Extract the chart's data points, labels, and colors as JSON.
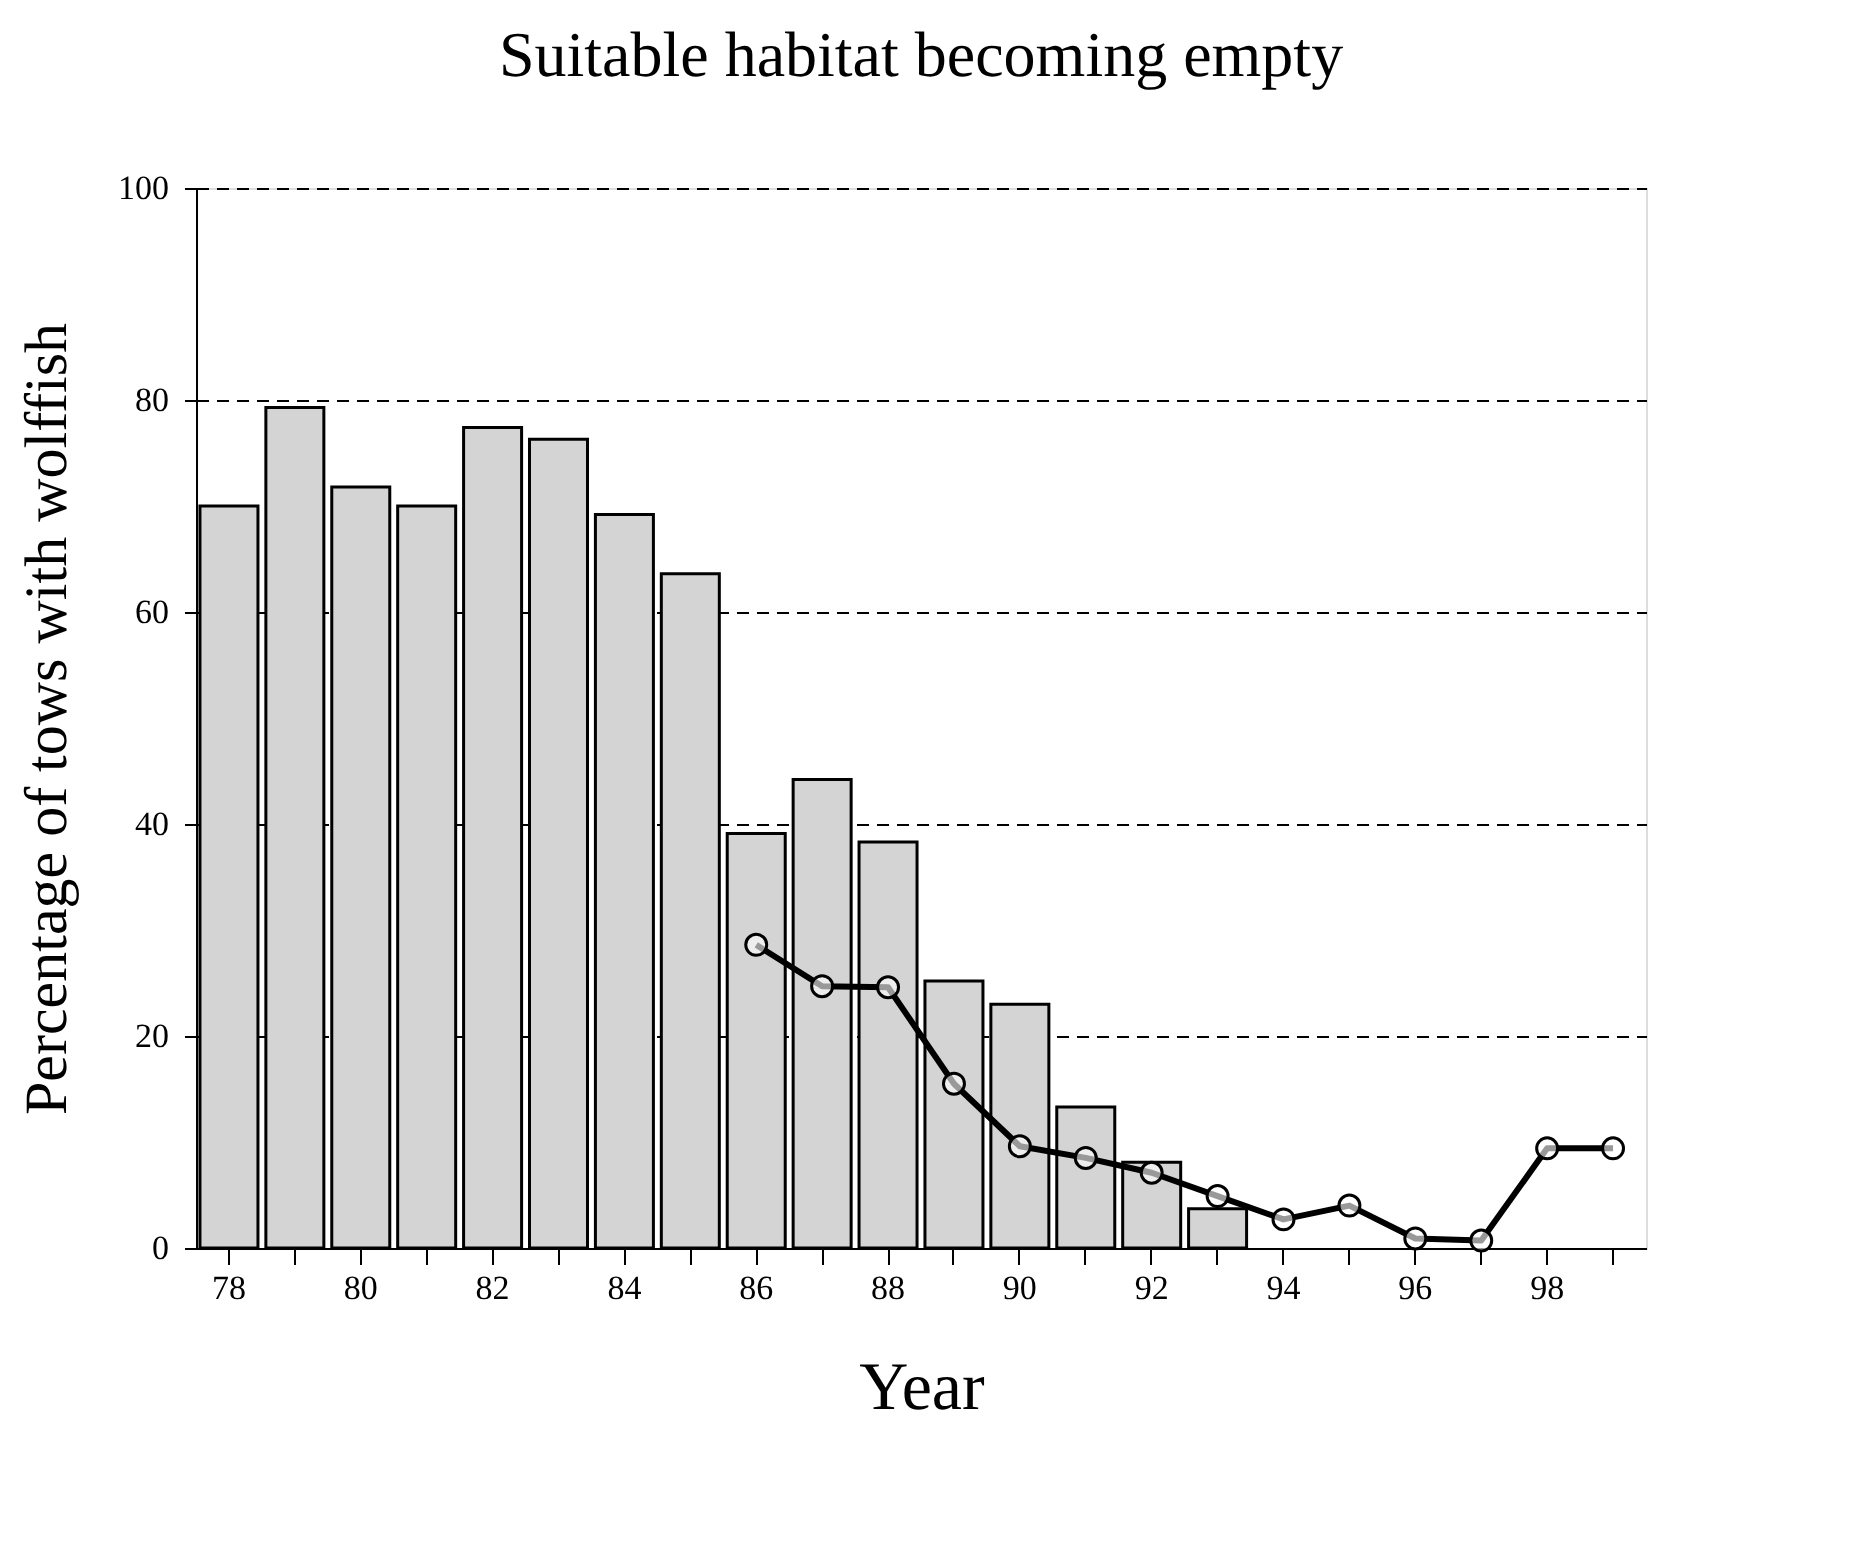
{
  "chart_data": {
    "type": "bar",
    "title": "Suitable habitat becoming empty",
    "xlabel": "Year",
    "ylabel": "Percentage of tows with wolffish",
    "categories": [
      "78",
      null,
      "80",
      null,
      "82",
      null,
      "84",
      null,
      "86",
      null,
      "88",
      null,
      "90",
      null,
      "92",
      null,
      "94",
      null,
      "96",
      null,
      "98",
      null
    ],
    "series": [
      {
        "color": "#d4d4d4",
        "values": [
          70.0,
          79.3,
          71.8,
          70.0,
          77.4,
          76.3,
          69.2,
          63.6,
          39.1,
          44.2,
          38.3,
          25.2,
          23.0,
          13.3,
          8.1,
          3.7,
          null,
          null,
          null,
          null,
          null,
          null
        ]
      },
      {
        "type": "line",
        "color": "#000000",
        "marker": "circle",
        "line_style": "solid",
        "values": [
          null,
          null,
          null,
          null,
          null,
          null,
          null,
          null,
          28.6,
          24.7,
          24.6,
          15.5,
          9.6,
          8.5,
          7.1,
          4.9,
          2.7,
          4.0,
          0.9,
          0.7,
          9.4,
          9.4
        ]
      }
    ],
    "ylim": [
      0,
      100
    ],
    "yticks": [
      0,
      20,
      40,
      60,
      80,
      100
    ],
    "grid": "y"
  }
}
